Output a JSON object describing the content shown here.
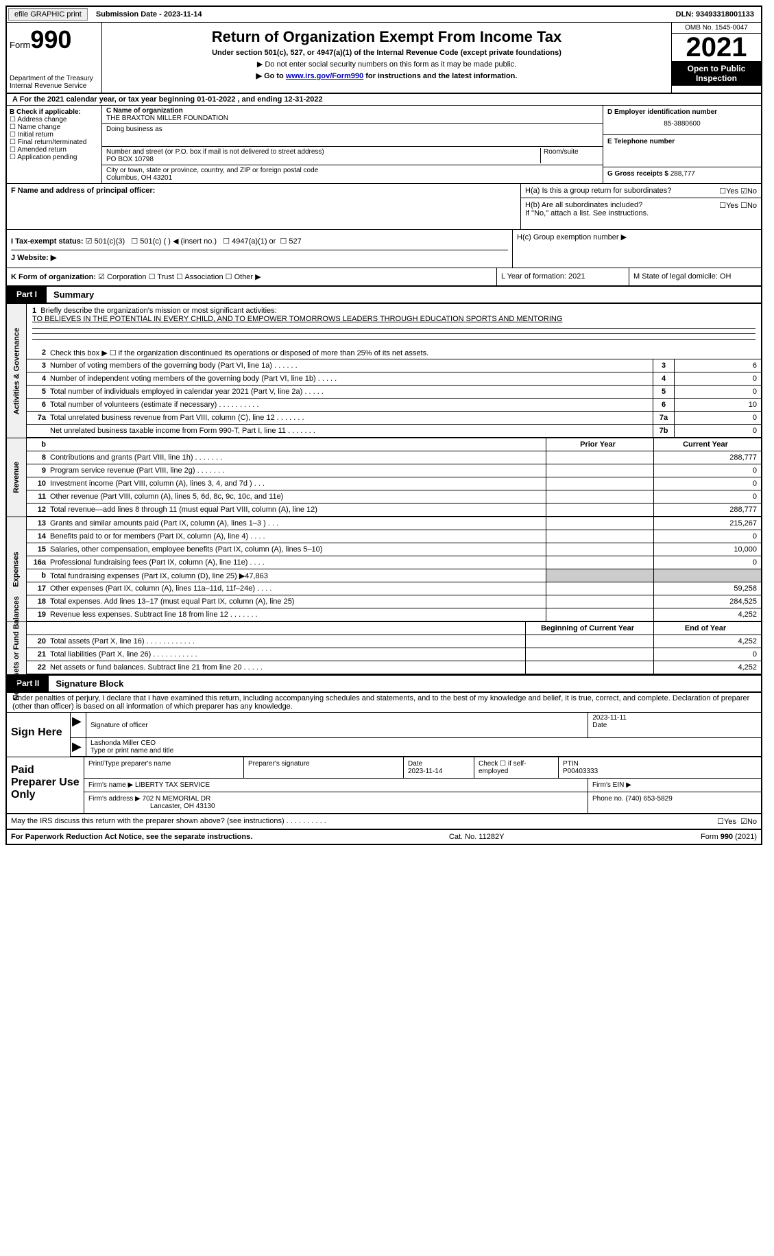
{
  "top": {
    "efile": "efile GRAPHIC print",
    "submission": "Submission Date - 2023-11-14",
    "dln": "DLN: 93493318001133"
  },
  "header": {
    "form_label": "Form",
    "form_number": "990",
    "dept": "Department of the Treasury Internal Revenue Service",
    "title": "Return of Organization Exempt From Income Tax",
    "subtitle": "Under section 501(c), 527, or 4947(a)(1) of the Internal Revenue Code (except private foundations)",
    "note1": "▶ Do not enter social security numbers on this form as it may be made public.",
    "note2_prefix": "▶ Go to ",
    "note2_link": "www.irs.gov/Form990",
    "note2_suffix": " for instructions and the latest information.",
    "omb": "OMB No. 1545-0047",
    "year": "2021",
    "inspection": "Open to Public Inspection"
  },
  "row_a": "A For the 2021 calendar year, or tax year beginning 01-01-2022    , and ending 12-31-2022",
  "section_b": {
    "label": "B Check if applicable:",
    "items": [
      "Address change",
      "Name change",
      "Initial return",
      "Final return/terminated",
      "Amended return",
      "Application pending"
    ]
  },
  "section_c": {
    "name_label": "C Name of organization",
    "name": "THE BRAXTON MILLER FOUNDATION",
    "dba_label": "Doing business as",
    "dba": "",
    "street_label": "Number and street (or P.O. box if mail is not delivered to street address)",
    "room_label": "Room/suite",
    "street": "PO BOX 10798",
    "city_label": "City or town, state or province, country, and ZIP or foreign postal code",
    "city": "Columbus, OH  43201"
  },
  "section_d": {
    "ein_label": "D Employer identification number",
    "ein": "85-3880600",
    "phone_label": "E Telephone number",
    "phone": "",
    "receipts_label": "G Gross receipts $",
    "receipts": "288,777"
  },
  "section_f": {
    "label": "F  Name and address of principal officer:",
    "value": ""
  },
  "section_h": {
    "a_label": "H(a)  Is this a group return for subordinates?",
    "a_yes": "Yes",
    "a_no": "No",
    "b_label": "H(b)  Are all subordinates included?",
    "b_yes": "Yes",
    "b_no": "No",
    "b_note": "If \"No,\" attach a list. See instructions.",
    "c_label": "H(c)  Group exemption number ▶"
  },
  "section_i": {
    "label": "I    Tax-exempt status:",
    "opt1": "501(c)(3)",
    "opt2": "501(c) (  ) ◀ (insert no.)",
    "opt3": "4947(a)(1) or",
    "opt4": "527"
  },
  "section_j": {
    "label": "J   Website: ▶"
  },
  "section_k": {
    "label": "K Form of organization:",
    "opts": [
      "Corporation",
      "Trust",
      "Association",
      "Other ▶"
    ],
    "l_label": "L Year of formation: 2021",
    "m_label": "M State of legal domicile: OH"
  },
  "part1": {
    "header": "Part I",
    "title": "Summary",
    "line1_label": "Briefly describe the organization's mission or most significant activities:",
    "line1_text": "TO BELIEVES IN THE POTENTIAL IN EVERY CHILD, AND TO EMPOWER TOMORROWS LEADERS THROUGH EDUCATION SPORTS AND MENTORING",
    "line2": "Check this box ▶ ☐  if the organization discontinued its operations or disposed of more than 25% of its net assets.",
    "governance_tab": "Activities & Governance",
    "revenue_tab": "Revenue",
    "expenses_tab": "Expenses",
    "netassets_tab": "Net Assets or Fund Balances",
    "col_prior": "Prior Year",
    "col_current": "Current Year",
    "col_begin": "Beginning of Current Year",
    "col_end": "End of Year",
    "lines_gov": [
      {
        "n": "3",
        "t": "Number of voting members of the governing body (Part VI, line 1a)   .    .    .    .    .    .",
        "box": "3",
        "v": "6"
      },
      {
        "n": "4",
        "t": "Number of independent voting members of the governing body (Part VI, line 1b)   .    .    .    .    .",
        "box": "4",
        "v": "0"
      },
      {
        "n": "5",
        "t": "Total number of individuals employed in calendar year 2021 (Part V, line 2a)     .    .    .    .    .",
        "box": "5",
        "v": "0"
      },
      {
        "n": "6",
        "t": "Total number of volunteers (estimate if necessary)      .    .    .    .    .    .    .    .    .    .",
        "box": "6",
        "v": "10"
      },
      {
        "n": "7a",
        "t": "Total unrelated business revenue from Part VIII, column (C), line 12     .    .    .    .    .    .    .",
        "box": "7a",
        "v": "0"
      },
      {
        "n": "",
        "t": "Net unrelated business taxable income from Form 990-T, Part I, line 11    .    .    .    .    .    .    .",
        "box": "7b",
        "v": "0"
      }
    ],
    "lines_rev": [
      {
        "n": "8",
        "t": "Contributions and grants (Part VIII, line 1h)    .    .    .    .    .    .    .",
        "p": "",
        "c": "288,777"
      },
      {
        "n": "9",
        "t": "Program service revenue (Part VIII, line 2g)    .    .    .    .    .    .    .",
        "p": "",
        "c": "0"
      },
      {
        "n": "10",
        "t": "Investment income (Part VIII, column (A), lines 3, 4, and 7d )    .    .    .",
        "p": "",
        "c": "0"
      },
      {
        "n": "11",
        "t": "Other revenue (Part VIII, column (A), lines 5, 6d, 8c, 9c, 10c, and 11e)",
        "p": "",
        "c": "0"
      },
      {
        "n": "12",
        "t": "Total revenue—add lines 8 through 11 (must equal Part VIII, column (A), line 12)",
        "p": "",
        "c": "288,777"
      }
    ],
    "lines_exp": [
      {
        "n": "13",
        "t": "Grants and similar amounts paid (Part IX, column (A), lines 1–3 )    .    .    .",
        "p": "",
        "c": "215,267"
      },
      {
        "n": "14",
        "t": "Benefits paid to or for members (Part IX, column (A), line 4)    .    .    .    .",
        "p": "",
        "c": "0"
      },
      {
        "n": "15",
        "t": "Salaries, other compensation, employee benefits (Part IX, column (A), lines 5–10)",
        "p": "",
        "c": "10,000"
      },
      {
        "n": "16a",
        "t": "Professional fundraising fees (Part IX, column (A), line 11e)    .    .    .    .",
        "p": "",
        "c": "0"
      },
      {
        "n": "b",
        "t": "Total fundraising expenses (Part IX, column (D), line 25) ▶47,863",
        "p": "grey",
        "c": "grey"
      },
      {
        "n": "17",
        "t": "Other expenses (Part IX, column (A), lines 11a–11d, 11f–24e)     .    .    .    .",
        "p": "",
        "c": "59,258"
      },
      {
        "n": "18",
        "t": "Total expenses. Add lines 13–17 (must equal Part IX, column (A), line 25)",
        "p": "",
        "c": "284,525"
      },
      {
        "n": "19",
        "t": "Revenue less expenses. Subtract line 18 from line 12    .    .    .    .    .    .    .",
        "p": "",
        "c": "4,252"
      }
    ],
    "lines_net": [
      {
        "n": "20",
        "t": "Total assets (Part X, line 16)    .    .    .    .    .    .    .    .    .    .    .    .",
        "p": "",
        "c": "4,252"
      },
      {
        "n": "21",
        "t": "Total liabilities (Part X, line 26)    .    .    .    .    .    .    .    .    .    .    .",
        "p": "",
        "c": "0"
      },
      {
        "n": "22",
        "t": "Net assets or fund balances. Subtract line 21 from line 20    .    .    .    .    .",
        "p": "",
        "c": "4,252"
      }
    ]
  },
  "part2": {
    "header": "Part II",
    "title": "Signature Block",
    "declaration": "Under penalties of perjury, I declare that I have examined this return, including accompanying schedules and statements, and to the best of my knowledge and belief, it is true, correct, and complete. Declaration of preparer (other than officer) is based on all information of which preparer has any knowledge.",
    "sign_here": "Sign Here",
    "sig_officer_label": "Signature of officer",
    "sig_date": "2023-11-11",
    "date_label": "Date",
    "officer_name": "Lashonda Miller CEO",
    "officer_name_label": "Type or print name and title",
    "paid": "Paid Preparer Use Only",
    "prep_name_label": "Print/Type preparer's name",
    "prep_name": "",
    "prep_sig_label": "Preparer's signature",
    "prep_date_label": "Date",
    "prep_date": "2023-11-14",
    "check_self": "Check ☐ if self-employed",
    "ptin_label": "PTIN",
    "ptin": "P00403333",
    "firm_name_label": "Firm's name    ▶",
    "firm_name": "LIBERTY TAX SERVICE",
    "firm_ein_label": "Firm's EIN ▶",
    "firm_addr_label": "Firm's address ▶",
    "firm_addr": "702 N MEMORIAL DR",
    "firm_city": "Lancaster, OH  43130",
    "firm_phone_label": "Phone no.",
    "firm_phone": "(740) 653-5829",
    "discuss": "May the IRS discuss this return with the preparer shown above? (see instructions)    .    .    .    .    .    .    .    .    .    .",
    "discuss_yes": "Yes",
    "discuss_no": "No"
  },
  "footer": {
    "paperwork": "For Paperwork Reduction Act Notice, see the separate instructions.",
    "cat": "Cat. No. 11282Y",
    "form": "Form 990 (2021)"
  }
}
